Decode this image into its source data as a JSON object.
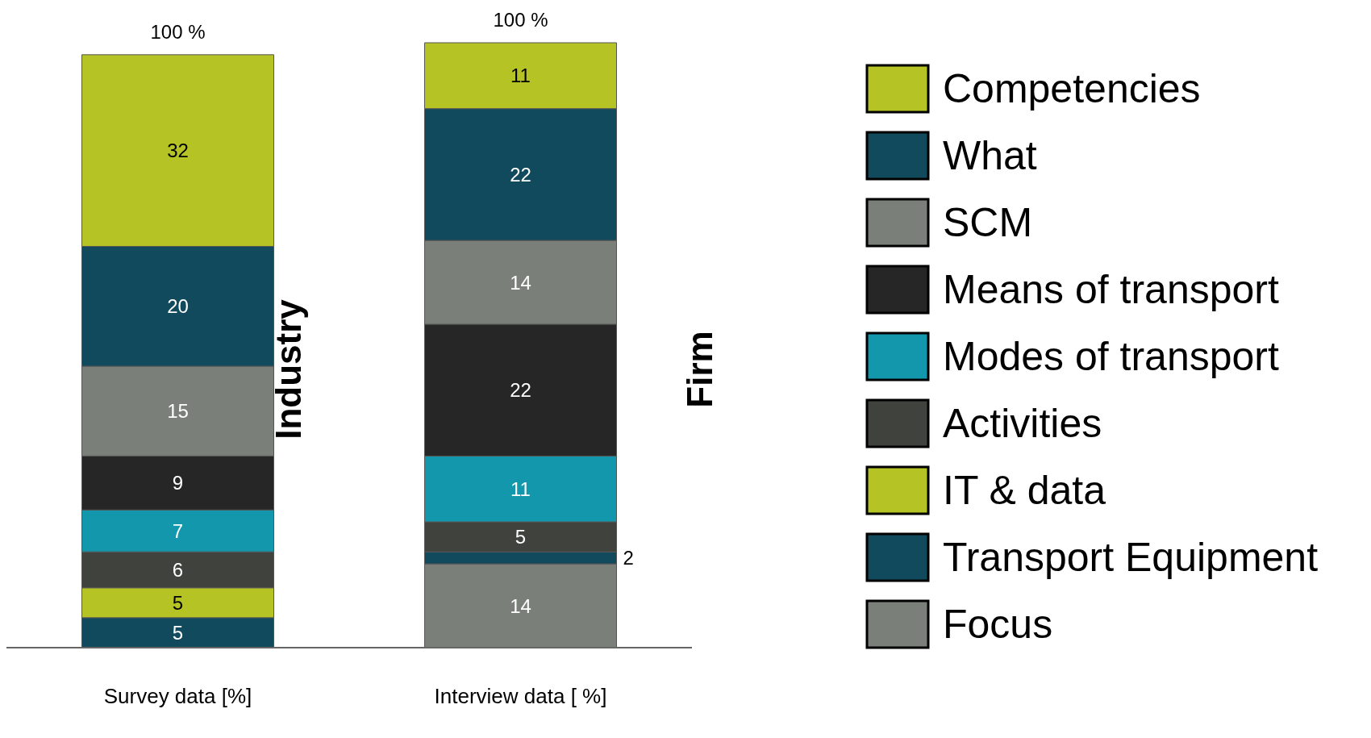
{
  "chart_data": {
    "type": "bar",
    "stacked": true,
    "categories": [
      "Survey data [%]",
      "Interview data [ %]"
    ],
    "series": [
      {
        "name": "Focus",
        "color": "#7a7f79",
        "values": [
          null,
          14
        ]
      },
      {
        "name": "Transport Equipment",
        "color": "#114a5c",
        "values": [
          5,
          2
        ]
      },
      {
        "name": "IT & data",
        "color": "#b5c424",
        "values": [
          5,
          null
        ]
      },
      {
        "name": "Activities",
        "color": "#40423d",
        "values": [
          6,
          5
        ]
      },
      {
        "name": "Modes of transport",
        "color": "#1297ad",
        "values": [
          7,
          11
        ]
      },
      {
        "name": "Means of transport",
        "color": "#262626",
        "values": [
          9,
          22
        ]
      },
      {
        "name": "SCM",
        "color": "#7a7f79",
        "values": [
          15,
          14
        ]
      },
      {
        "name": "What",
        "color": "#114a5c",
        "values": [
          20,
          22
        ]
      },
      {
        "name": "Competencies",
        "color": "#b5c424",
        "values": [
          32,
          11
        ]
      }
    ],
    "data_labels": true,
    "totals": [
      "100 %",
      "100 %"
    ],
    "legend": "right",
    "annotations": [
      "Industry",
      "Firm"
    ]
  }
}
